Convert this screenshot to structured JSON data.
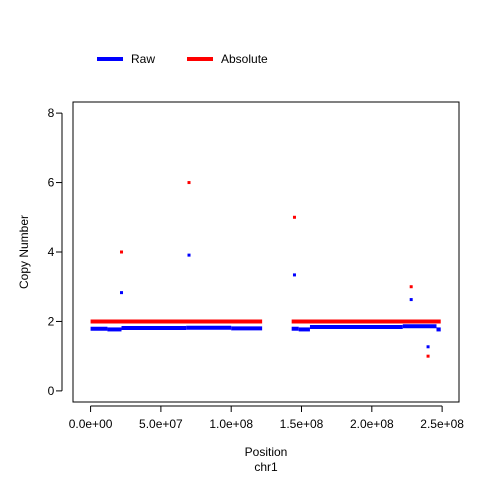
{
  "chart_data": {
    "type": "scatter",
    "xlabel": "Position",
    "xlabel2": "chr1",
    "ylabel": "Copy Number",
    "xlim": [
      -12500000,
      262000000
    ],
    "ylim": [
      -0.32,
      8.32
    ],
    "x_ticks": [
      0,
      50000000,
      100000000,
      150000000,
      200000000,
      250000000
    ],
    "x_tick_labels": [
      "0.0e+00",
      "5.0e+07",
      "1.0e+08",
      "1.5e+08",
      "2.0e+08",
      "2.5e+08"
    ],
    "y_ticks": [
      0,
      2,
      4,
      6,
      8
    ],
    "y_tick_labels": [
      "0",
      "2",
      "4",
      "6",
      "8"
    ],
    "legend": {
      "placement": "top-left",
      "entries": [
        {
          "label": "Raw",
          "color": "#0000ff"
        },
        {
          "label": "Absolute",
          "color": "#ff0000"
        }
      ]
    },
    "series": [
      {
        "name": "Raw",
        "color": "#0000ff",
        "segments": [
          {
            "x": [
              0,
              12000000
            ],
            "y": 1.79
          },
          {
            "x": [
              12000000,
              22000000
            ],
            "y": 1.77
          },
          {
            "x": [
              22000000,
              68000000
            ],
            "y": 1.81
          },
          {
            "x": [
              68000000,
              100000000
            ],
            "y": 1.82
          },
          {
            "x": [
              100000000,
              122000000
            ],
            "y": 1.8
          },
          {
            "x": [
              143000000,
              148000000
            ],
            "y": 1.79
          },
          {
            "x": [
              148000000,
              156000000
            ],
            "y": 1.77
          },
          {
            "x": [
              156000000,
              222000000
            ],
            "y": 1.84
          },
          {
            "x": [
              222000000,
              246000000
            ],
            "y": 1.86
          },
          {
            "x": [
              246000000,
              249000000
            ],
            "y": 1.77
          }
        ],
        "points": [
          {
            "x": 22000000,
            "y": 2.83
          },
          {
            "x": 70000000,
            "y": 3.91
          },
          {
            "x": 145000000,
            "y": 3.34
          },
          {
            "x": 228000000,
            "y": 2.63
          },
          {
            "x": 240000000,
            "y": 1.27
          }
        ]
      },
      {
        "name": "Absolute",
        "color": "#ff0000",
        "segments": [
          {
            "x": [
              0,
              122000000
            ],
            "y": 2.0
          },
          {
            "x": [
              143000000,
              249000000
            ],
            "y": 2.0
          }
        ],
        "points": [
          {
            "x": 22000000,
            "y": 4.0
          },
          {
            "x": 70000000,
            "y": 6.0
          },
          {
            "x": 145000000,
            "y": 5.0
          },
          {
            "x": 228000000,
            "y": 3.0
          },
          {
            "x": 240000000,
            "y": 1.0
          }
        ]
      }
    ]
  }
}
